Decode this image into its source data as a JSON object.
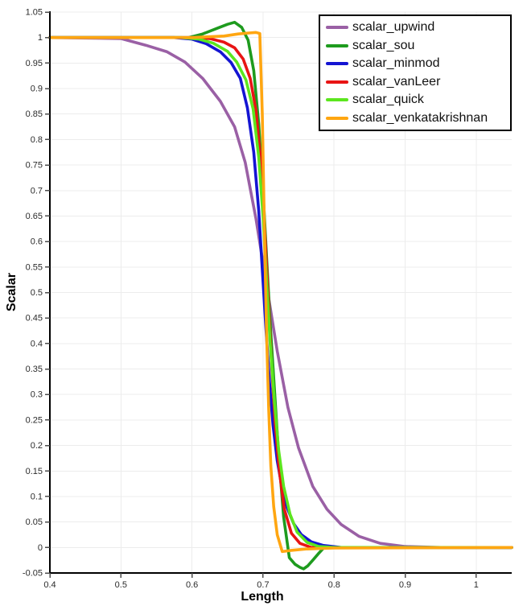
{
  "chart_data": {
    "type": "line",
    "title": "",
    "xlabel": "Length",
    "ylabel": "Scalar",
    "xlim": [
      0.4,
      1.05
    ],
    "ylim": [
      -0.05,
      1.05
    ],
    "grid": true,
    "legend_position": "top-right",
    "x_ticks": [
      0.4,
      0.5,
      0.6,
      0.7,
      0.8,
      0.9,
      1.0
    ],
    "x_tick_labels": [
      "0.4",
      "0.5",
      "0.6",
      "0.7",
      "0.8",
      "0.9",
      "1"
    ],
    "y_ticks": [
      -0.05,
      0,
      0.05,
      0.1,
      0.15,
      0.2,
      0.25,
      0.3,
      0.35,
      0.4,
      0.45,
      0.5,
      0.55,
      0.6,
      0.65,
      0.7,
      0.75,
      0.8,
      0.85,
      0.9,
      0.95,
      1,
      1.05
    ],
    "y_tick_labels": [
      "-0.05",
      "0",
      "0.05",
      "0.1",
      "0.15",
      "0.2",
      "0.25",
      "0.3",
      "0.35",
      "0.4",
      "0.45",
      "0.5",
      "0.55",
      "0.6",
      "0.65",
      "0.7",
      "0.75",
      "0.8",
      "0.85",
      "0.9",
      "0.95",
      "1",
      "1.05"
    ],
    "colors": {
      "grid": "#ececec",
      "axis": "#000000",
      "tick": "#4d4d4d",
      "tick_text": "#2b2b2b"
    },
    "series": [
      {
        "name": "scalar_upwind",
        "color": "#9a60a5",
        "x": [
          0.4,
          0.5,
          0.535,
          0.565,
          0.59,
          0.615,
          0.64,
          0.66,
          0.675,
          0.69,
          0.705,
          0.72,
          0.735,
          0.75,
          0.77,
          0.79,
          0.81,
          0.835,
          0.865,
          0.9,
          0.95,
          1.05
        ],
        "y": [
          1.0,
          0.998,
          0.985,
          0.972,
          0.952,
          0.92,
          0.875,
          0.825,
          0.755,
          0.645,
          0.515,
          0.385,
          0.275,
          0.195,
          0.12,
          0.075,
          0.045,
          0.022,
          0.008,
          0.002,
          0.0,
          0.0
        ]
      },
      {
        "name": "scalar_sou",
        "color": "#1e9b1e",
        "x": [
          0.4,
          0.595,
          0.615,
          0.635,
          0.65,
          0.66,
          0.67,
          0.679,
          0.687,
          0.694,
          0.7,
          0.705,
          0.71,
          0.716,
          0.722,
          0.729,
          0.737,
          0.745,
          0.752,
          0.757,
          0.763,
          0.77,
          0.778,
          0.786,
          0.82,
          1.05
        ],
        "y": [
          1.0,
          1.0,
          1.007,
          1.018,
          1.026,
          1.03,
          1.02,
          0.995,
          0.935,
          0.83,
          0.7,
          0.57,
          0.44,
          0.31,
          0.18,
          0.06,
          -0.02,
          -0.033,
          -0.039,
          -0.042,
          -0.036,
          -0.025,
          -0.012,
          0.0,
          0.0,
          0.0
        ]
      },
      {
        "name": "scalar_minmod",
        "color": "#1414d2",
        "x": [
          0.4,
          0.575,
          0.6,
          0.62,
          0.64,
          0.655,
          0.668,
          0.678,
          0.687,
          0.694,
          0.699,
          0.704,
          0.709,
          0.714,
          0.72,
          0.727,
          0.734,
          0.743,
          0.754,
          0.768,
          0.785,
          0.81,
          1.05
        ],
        "y": [
          1.0,
          1.0,
          0.997,
          0.988,
          0.972,
          0.951,
          0.92,
          0.862,
          0.775,
          0.66,
          0.545,
          0.43,
          0.325,
          0.24,
          0.17,
          0.115,
          0.078,
          0.047,
          0.025,
          0.011,
          0.004,
          0.0,
          0.0
        ]
      },
      {
        "name": "scalar_vanLeer",
        "color": "#e81414",
        "x": [
          0.4,
          0.6,
          0.625,
          0.645,
          0.66,
          0.672,
          0.682,
          0.69,
          0.697,
          0.702,
          0.707,
          0.712,
          0.717,
          0.723,
          0.73,
          0.74,
          0.752,
          0.768,
          1.05
        ],
        "y": [
          1.0,
          1.0,
          0.998,
          0.991,
          0.98,
          0.958,
          0.92,
          0.858,
          0.755,
          0.63,
          0.5,
          0.36,
          0.245,
          0.15,
          0.075,
          0.028,
          0.008,
          0.0,
          0.0
        ]
      },
      {
        "name": "scalar_quick",
        "color": "#5ce61e",
        "x": [
          0.4,
          0.585,
          0.61,
          0.63,
          0.65,
          0.663,
          0.676,
          0.686,
          0.694,
          0.7,
          0.705,
          0.71,
          0.716,
          0.722,
          0.729,
          0.738,
          0.748,
          0.762,
          0.778,
          0.8,
          1.05
        ],
        "y": [
          1.0,
          1.0,
          0.997,
          0.989,
          0.973,
          0.952,
          0.917,
          0.86,
          0.765,
          0.65,
          0.525,
          0.4,
          0.285,
          0.19,
          0.12,
          0.065,
          0.03,
          0.01,
          0.002,
          0.0,
          0.0
        ]
      },
      {
        "name": "scalar_venkatakrishnan",
        "color": "#ffa611",
        "x": [
          0.4,
          0.6,
          0.645,
          0.665,
          0.68,
          0.69,
          0.6955,
          0.699,
          0.702,
          0.705,
          0.708,
          0.711,
          0.715,
          0.72,
          0.727,
          0.738,
          0.76,
          0.8,
          1.05
        ],
        "y": [
          1.0,
          1.0,
          1.003,
          1.007,
          1.009,
          1.01,
          1.008,
          0.85,
          0.62,
          0.42,
          0.27,
          0.16,
          0.08,
          0.025,
          -0.008,
          -0.006,
          -0.003,
          -0.001,
          0.0
        ]
      }
    ]
  }
}
